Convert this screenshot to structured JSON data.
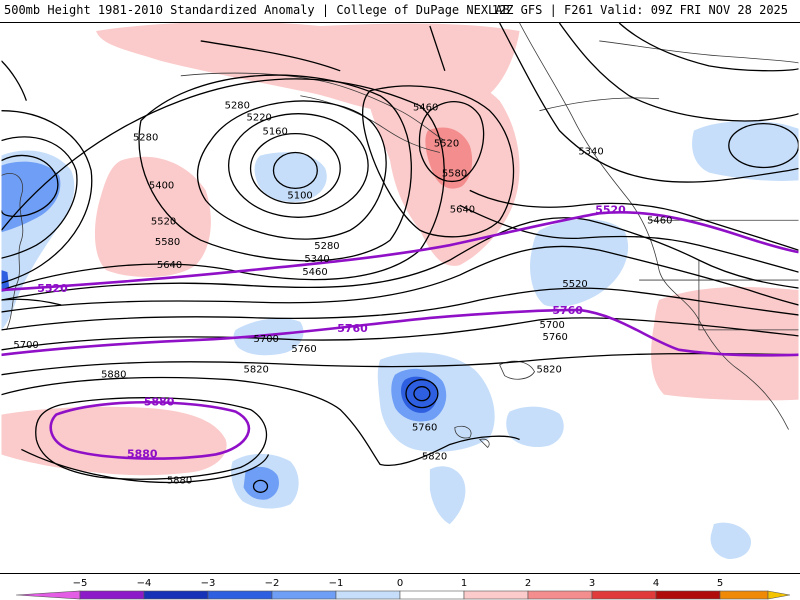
{
  "header": {
    "title_left": "500mb Height 1981-2010 Standardized Anomaly | College of DuPage NEXLAB",
    "title_right": "12Z GFS | F261 Valid: 09Z FRI NOV 28 2025"
  },
  "contour_labels": [
    {
      "id": "l5280a",
      "text": "5280"
    },
    {
      "id": "l5220",
      "text": "5220"
    },
    {
      "id": "l5160",
      "text": "5160"
    },
    {
      "id": "l5280b",
      "text": "5280"
    },
    {
      "id": "l5400",
      "text": "5400"
    },
    {
      "id": "l5100",
      "text": "5100"
    },
    {
      "id": "l5460a",
      "text": "5460"
    },
    {
      "id": "l5520a",
      "text": "5520"
    },
    {
      "id": "l5580a",
      "text": "5580"
    },
    {
      "id": "l5340a",
      "text": "5340"
    },
    {
      "id": "l5520b",
      "text": "5520"
    },
    {
      "id": "l5580b",
      "text": "5580"
    },
    {
      "id": "l5640a",
      "text": "5640"
    },
    {
      "id": "l5280c",
      "text": "5280"
    },
    {
      "id": "l5340b",
      "text": "5340"
    },
    {
      "id": "l5460b",
      "text": "5460"
    },
    {
      "id": "l5640b",
      "text": "5640"
    },
    {
      "id": "l5460c",
      "text": "5460"
    },
    {
      "id": "l5520c",
      "text": "5520"
    },
    {
      "id": "l5700a",
      "text": "5700"
    },
    {
      "id": "l5760a",
      "text": "5760"
    },
    {
      "id": "l5700b",
      "text": "5700"
    },
    {
      "id": "l5760b",
      "text": "5760"
    },
    {
      "id": "l5700c",
      "text": "5700"
    },
    {
      "id": "l5820a",
      "text": "5820"
    },
    {
      "id": "l5880a",
      "text": "5880"
    },
    {
      "id": "l5760c",
      "text": "5760"
    },
    {
      "id": "l5820b",
      "text": "5820"
    },
    {
      "id": "l5820c",
      "text": "5820"
    },
    {
      "id": "l5880b",
      "text": "5880"
    }
  ],
  "highlight_labels": [
    {
      "id": "p5520a",
      "text": "5520"
    },
    {
      "id": "p5520b",
      "text": "5520"
    },
    {
      "id": "p5760a",
      "text": "5760"
    },
    {
      "id": "p5760b",
      "text": "5760"
    },
    {
      "id": "p5880a",
      "text": "5880"
    },
    {
      "id": "p5880b",
      "text": "5880"
    }
  ],
  "legend": {
    "ticks": [
      "−5",
      "−4",
      "−3",
      "−2",
      "−1",
      "0",
      "1",
      "2",
      "3",
      "4",
      "5"
    ],
    "colors": {
      "n5": "#e35ee5",
      "n4": "#8d1ac8",
      "n3": "#1633b8",
      "n2": "#2e5fe0",
      "n1": "#6e9ef5",
      "n0": "#c6defa",
      "p0": "#ffffff",
      "p1": "#fbcaca",
      "p2": "#f48d8d",
      "p3": "#e03a3a",
      "p4": "#b00c0c",
      "p5": "#f08a06",
      "p6": "#f5c400"
    }
  },
  "colors": {
    "highlight_contour": "#9010c8",
    "contour": "#000000",
    "coast": "#3a3a3a"
  }
}
